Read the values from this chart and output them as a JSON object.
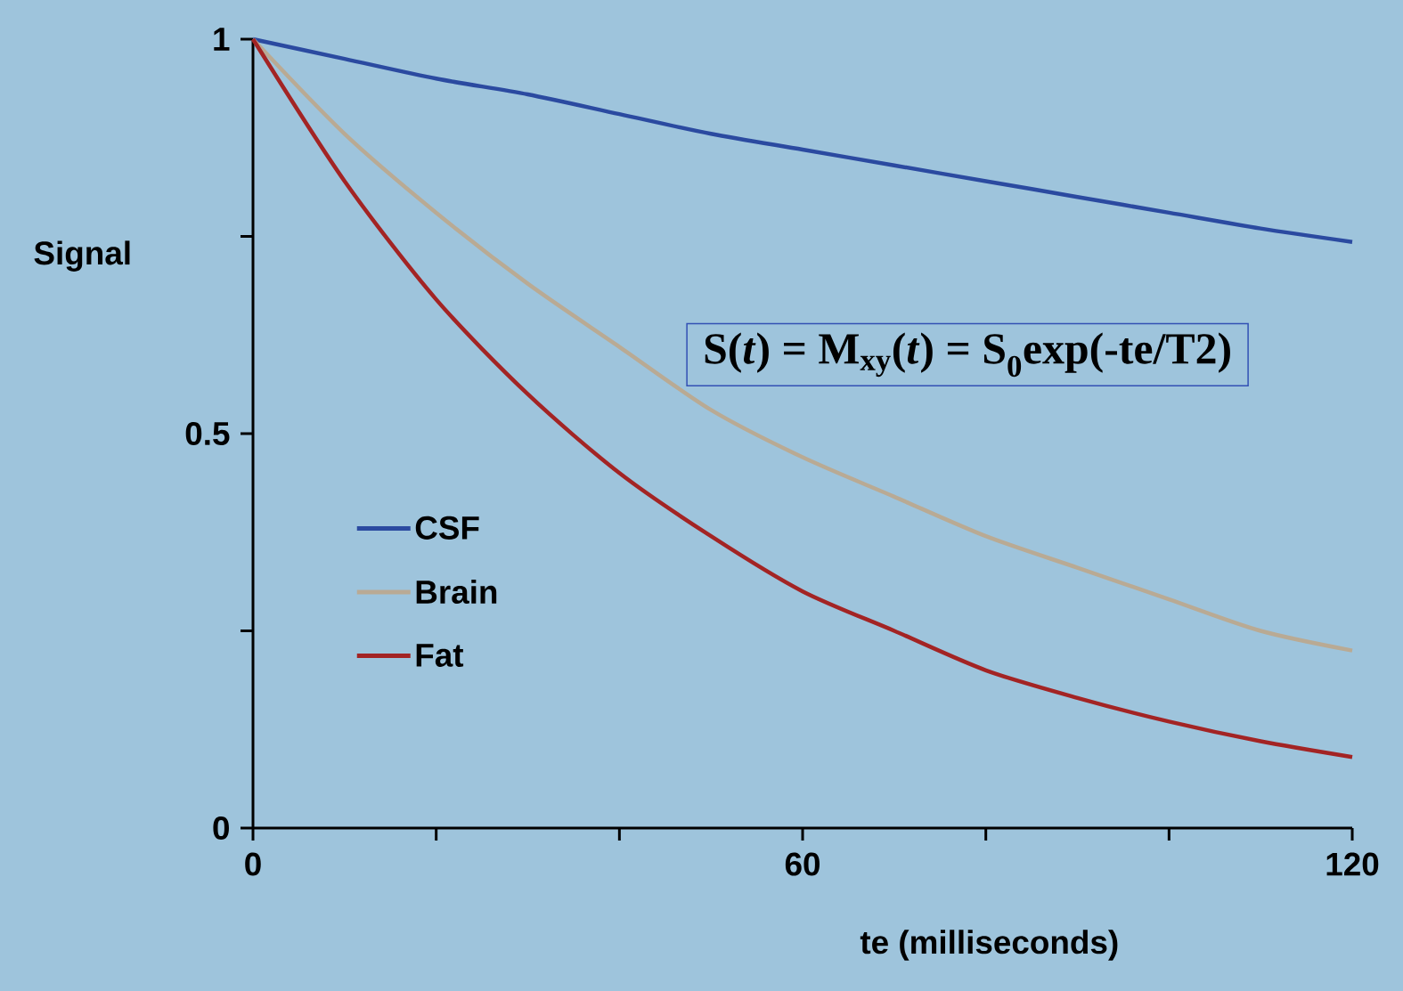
{
  "chart_data": {
    "type": "line",
    "xlabel": "te (milliseconds)",
    "ylabel": "Signal",
    "x": [
      0,
      10,
      20,
      30,
      40,
      50,
      60,
      70,
      80,
      90,
      100,
      110,
      120
    ],
    "series": [
      {
        "name": "CSF",
        "color": "#2b4aa0",
        "values": [
          1,
          0.975,
          0.95,
          0.93,
          0.905,
          0.88,
          0.86,
          0.84,
          0.82,
          0.8,
          0.78,
          0.76,
          0.743
        ]
      },
      {
        "name": "Brain",
        "color": "#b9aa94",
        "values": [
          1,
          0.88,
          0.78,
          0.69,
          0.61,
          0.53,
          0.47,
          0.42,
          0.37,
          0.33,
          0.29,
          0.25,
          0.225
        ]
      },
      {
        "name": "Fat",
        "color": "#a32424",
        "values": [
          1,
          0.82,
          0.67,
          0.55,
          0.45,
          0.37,
          0.3,
          0.25,
          0.2,
          0.165,
          0.135,
          0.11,
          0.09
        ]
      }
    ],
    "xlim": [
      0,
      120
    ],
    "ylim": [
      0,
      1
    ],
    "xticks": [
      0,
      {
        "value": 20,
        "label": null
      },
      {
        "value": 40,
        "label": null
      },
      60,
      {
        "value": 80,
        "label": null
      },
      {
        "value": 100,
        "label": null
      },
      120
    ],
    "yticks": [
      0,
      {
        "value": 0.25,
        "label": null
      },
      0.5,
      {
        "value": 0.75,
        "label": null
      },
      1
    ],
    "annotations": [
      "S(*t*) = M$_{xy}$(*t*) = S$_{0}$exp(-te/T2)"
    ],
    "legend": "left",
    "grid": false,
    "marker": "none",
    "line_style": "solid"
  }
}
